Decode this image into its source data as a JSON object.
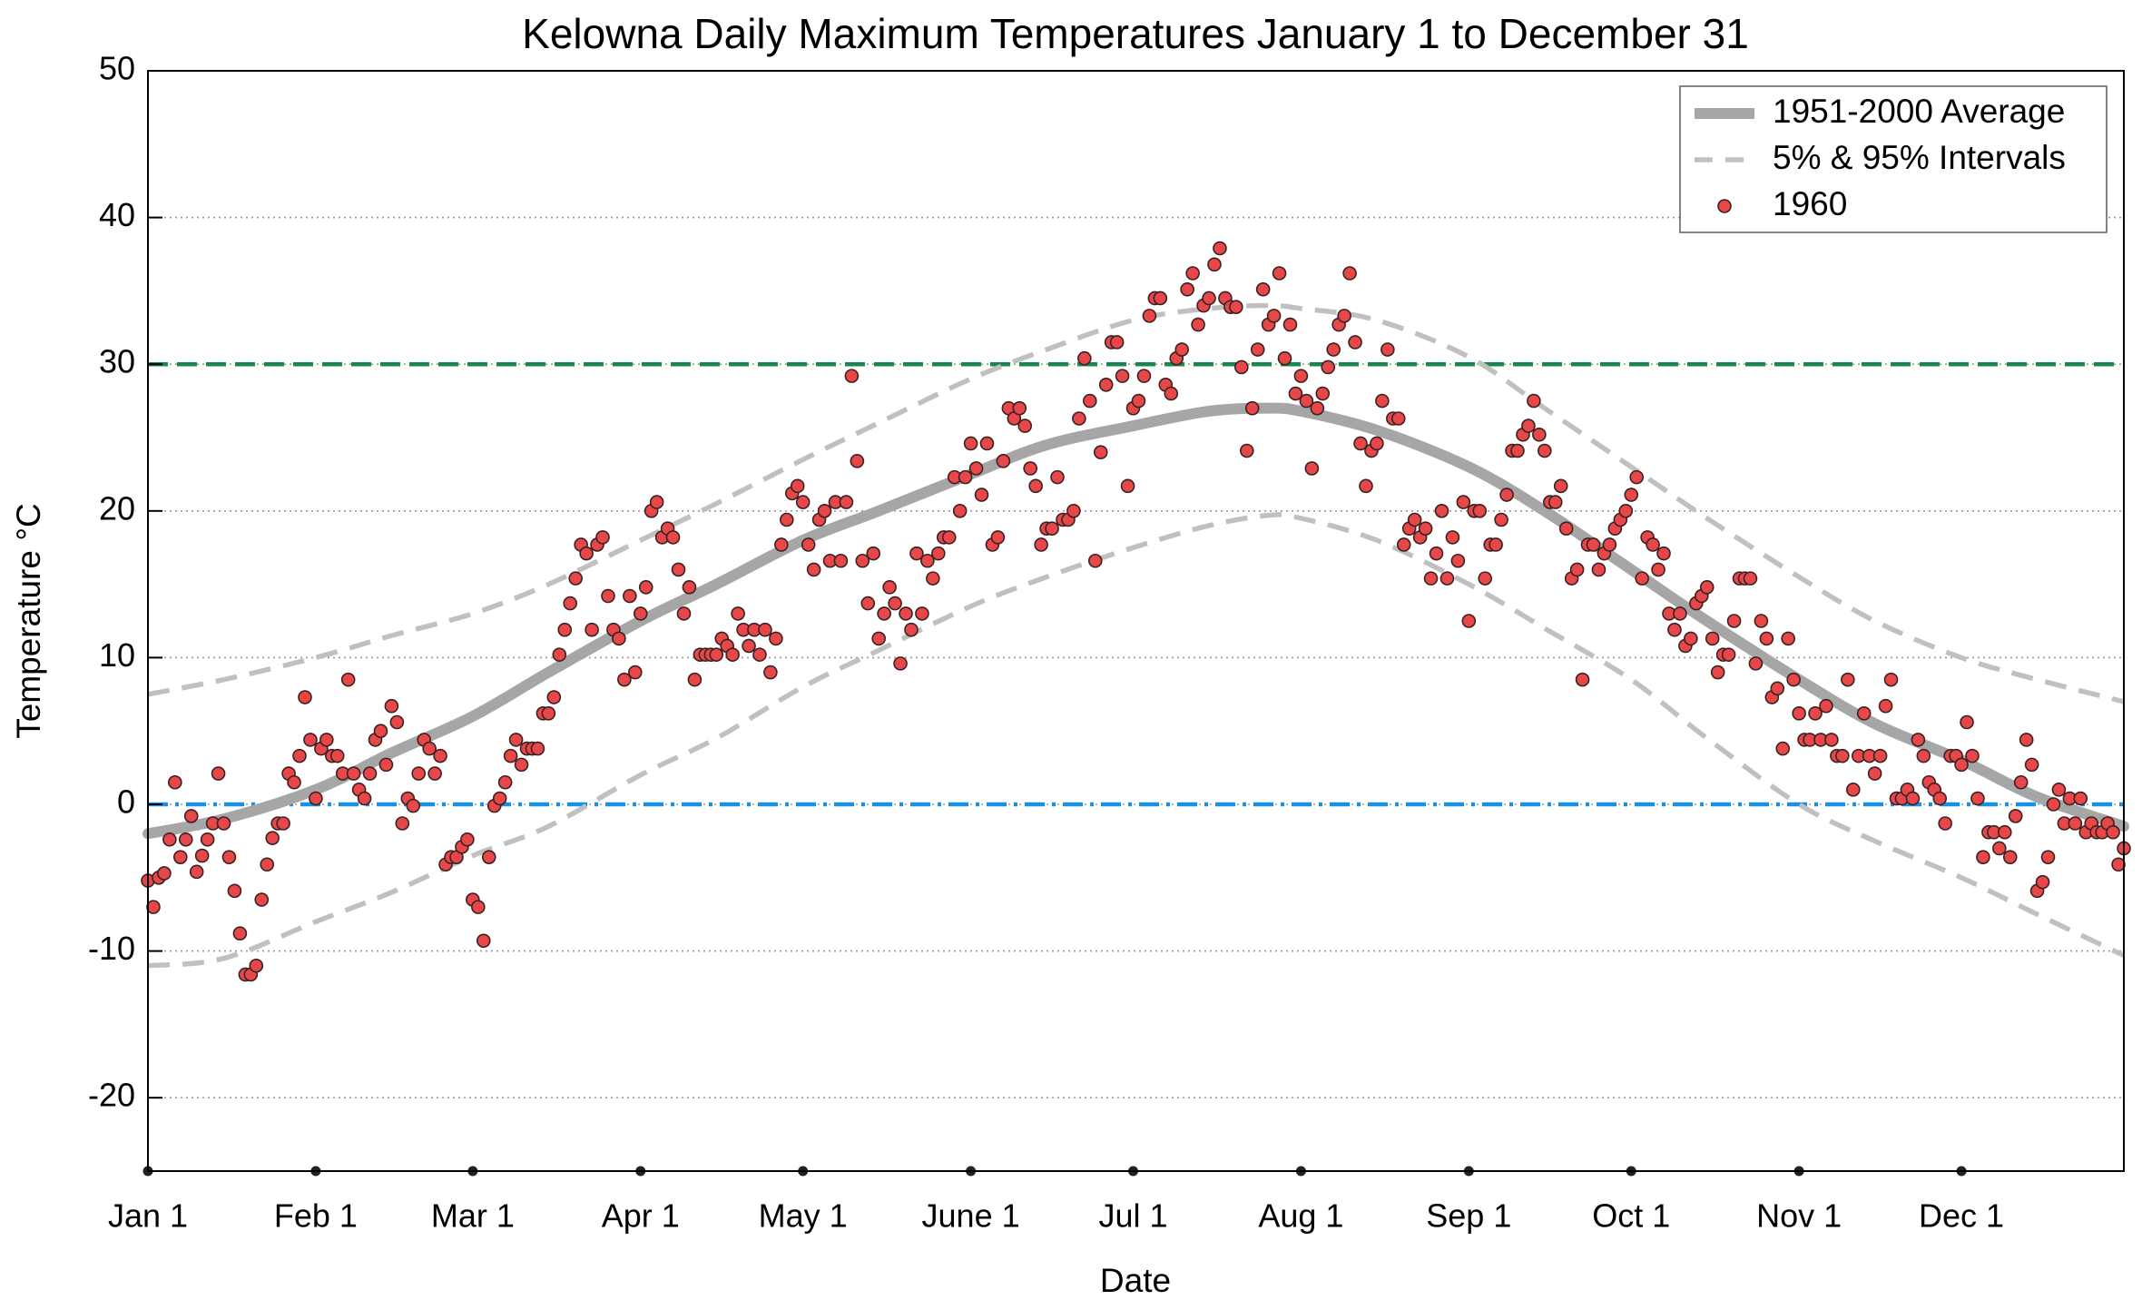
{
  "chart_data": {
    "type": "scatter",
    "title": "Kelowna Daily Maximum Temperatures January 1 to December 31",
    "x_label": "Date",
    "y_label": "Temperature °C",
    "xlim": [
      1,
      366
    ],
    "ylim": [
      -25,
      50
    ],
    "xticks": [
      {
        "value": 1,
        "label": "Jan 1"
      },
      {
        "value": 32,
        "label": "Feb 1"
      },
      {
        "value": 61,
        "label": "Mar 1"
      },
      {
        "value": 92,
        "label": "Apr 1"
      },
      {
        "value": 122,
        "label": "May 1"
      },
      {
        "value": 153,
        "label": "June 1"
      },
      {
        "value": 183,
        "label": "Jul 1"
      },
      {
        "value": 214,
        "label": "Aug 1"
      },
      {
        "value": 245,
        "label": "Sep 1"
      },
      {
        "value": 275,
        "label": "Oct 1"
      },
      {
        "value": 306,
        "label": "Nov 1"
      },
      {
        "value": 336,
        "label": "Dec 1"
      }
    ],
    "yticks": [
      -20,
      -10,
      0,
      10,
      20,
      30,
      40,
      50
    ],
    "grid": true,
    "legend": "upper right",
    "reference_lines": [
      {
        "value": 30,
        "color": "#16884f",
        "style": "dashed"
      },
      {
        "value": 0,
        "color": "#1a8fe3",
        "style": "dashdot"
      }
    ],
    "series": [
      {
        "name": "1951-2000 Average",
        "kind": "line",
        "color": "#a6a6a6",
        "x": [
          1,
          15,
          32,
          46,
          61,
          75,
          92,
          106,
          122,
          136,
          153,
          167,
          183,
          197,
          208,
          214,
          228,
          245,
          259,
          275,
          289,
          306,
          320,
          336,
          350,
          366
        ],
        "values": [
          -2,
          -1,
          1,
          3.5,
          6,
          9,
          12.5,
          15,
          18,
          20,
          22.5,
          24.5,
          25.8,
          26.8,
          27,
          26.8,
          25.5,
          23,
          20,
          16,
          12.5,
          8.5,
          5.5,
          3,
          0.5,
          -1.5
        ]
      },
      {
        "name": "5% & 95% Intervals",
        "kind": "band",
        "color": "#c0c0c0",
        "x": [
          1,
          15,
          32,
          46,
          61,
          75,
          92,
          106,
          122,
          136,
          153,
          167,
          183,
          197,
          208,
          214,
          228,
          245,
          259,
          275,
          289,
          306,
          320,
          336,
          350,
          366
        ],
        "upper": [
          7.5,
          8.5,
          10,
          11.5,
          13,
          15,
          18,
          20.5,
          23.5,
          26,
          29,
          31,
          33,
          33.8,
          34,
          33.8,
          33,
          30.5,
          27,
          23,
          19.5,
          15.5,
          12.5,
          10,
          8.5,
          7
        ],
        "lower": [
          -11,
          -10.5,
          -8,
          -6,
          -3.5,
          -1.5,
          2,
          4.5,
          8,
          10.5,
          13.5,
          15.5,
          17.5,
          19,
          19.7,
          19.5,
          18,
          15,
          12,
          8.5,
          4.5,
          0,
          -2.5,
          -5,
          -7.5,
          -10.3
        ]
      },
      {
        "name": "1960",
        "kind": "points",
        "color": "#e8474a",
        "x": [
          1,
          2,
          3,
          4,
          5,
          6,
          7,
          8,
          9,
          10,
          11,
          12,
          13,
          14,
          15,
          16,
          17,
          18,
          19,
          20,
          21,
          22,
          23,
          24,
          25,
          26,
          27,
          28,
          29,
          30,
          31,
          32,
          33,
          34,
          35,
          36,
          37,
          38,
          39,
          40,
          41,
          42,
          43,
          44,
          45,
          46,
          47,
          48,
          49,
          50,
          51,
          52,
          53,
          54,
          55,
          56,
          57,
          58,
          59,
          60,
          61,
          62,
          63,
          64,
          65,
          66,
          67,
          68,
          69,
          70,
          71,
          72,
          73,
          74,
          75,
          76,
          77,
          78,
          79,
          80,
          81,
          82,
          83,
          84,
          85,
          86,
          87,
          88,
          89,
          90,
          91,
          92,
          93,
          94,
          95,
          96,
          97,
          98,
          99,
          100,
          101,
          102,
          103,
          104,
          105,
          106,
          107,
          108,
          109,
          110,
          111,
          112,
          113,
          114,
          115,
          116,
          117,
          118,
          119,
          120,
          121,
          122,
          123,
          124,
          125,
          126,
          127,
          128,
          129,
          130,
          131,
          132,
          133,
          134,
          135,
          136,
          137,
          138,
          139,
          140,
          141,
          142,
          143,
          144,
          145,
          146,
          147,
          148,
          149,
          150,
          151,
          152,
          153,
          154,
          155,
          156,
          157,
          158,
          159,
          160,
          161,
          162,
          163,
          164,
          165,
          166,
          167,
          168,
          169,
          170,
          171,
          172,
          173,
          174,
          175,
          176,
          177,
          178,
          179,
          180,
          181,
          182,
          183,
          184,
          185,
          186,
          187,
          188,
          189,
          190,
          191,
          192,
          193,
          194,
          195,
          196,
          197,
          198,
          199,
          200,
          201,
          202,
          203,
          204,
          205,
          206,
          207,
          208,
          209,
          210,
          211,
          212,
          213,
          214,
          215,
          216,
          217,
          218,
          219,
          220,
          221,
          222,
          223,
          224,
          225,
          226,
          227,
          228,
          229,
          230,
          231,
          232,
          233,
          234,
          235,
          236,
          237,
          238,
          239,
          240,
          241,
          242,
          243,
          244,
          245,
          246,
          247,
          248,
          249,
          250,
          251,
          252,
          253,
          254,
          255,
          256,
          257,
          258,
          259,
          260,
          261,
          262,
          263,
          264,
          265,
          266,
          267,
          268,
          269,
          270,
          271,
          272,
          273,
          274,
          275,
          276,
          277,
          278,
          279,
          280,
          281,
          282,
          283,
          284,
          285,
          286,
          287,
          288,
          289,
          290,
          291,
          292,
          293,
          294,
          295,
          296,
          297,
          298,
          299,
          300,
          301,
          302,
          303,
          304,
          305,
          306,
          307,
          308,
          309,
          310,
          311,
          312,
          313,
          314,
          315,
          316,
          317,
          318,
          319,
          320,
          321,
          322,
          323,
          324,
          325,
          326,
          327,
          328,
          329,
          330,
          331,
          332,
          333,
          334,
          335,
          336,
          337,
          338,
          339,
          340,
          341,
          342,
          343,
          344,
          345,
          346,
          347,
          348,
          349,
          350,
          351,
          352,
          353,
          354,
          355,
          356,
          357,
          358,
          359,
          360,
          361,
          362,
          363,
          364,
          365,
          366
        ],
        "values": [
          -5.2,
          -7,
          -5,
          -4.7,
          -2.4,
          1.5,
          -3.6,
          -2.4,
          -0.8,
          -4.6,
          -3.5,
          -2.4,
          -1.3,
          2.1,
          -1.3,
          -3.6,
          -5.9,
          -8.8,
          -11.6,
          -11.6,
          -11,
          -6.5,
          -4.1,
          -2.3,
          -1.3,
          -1.3,
          2.1,
          1.5,
          3.3,
          7.3,
          4.4,
          0.4,
          3.8,
          4.4,
          3.3,
          3.3,
          2.1,
          8.5,
          2.1,
          1.0,
          0.4,
          2.1,
          4.4,
          5.0,
          2.7,
          6.7,
          5.6,
          -1.3,
          0.4,
          -0.1,
          2.1,
          4.4,
          3.8,
          2.1,
          3.3,
          -4.1,
          -3.6,
          -3.6,
          -2.9,
          -2.4,
          -6.5,
          -7.0,
          -9.3,
          -3.6,
          -0.1,
          0.4,
          1.5,
          3.3,
          4.4,
          2.7,
          3.8,
          3.8,
          3.8,
          6.2,
          6.2,
          7.3,
          10.2,
          11.9,
          13.7,
          15.4,
          17.7,
          17.1,
          11.9,
          17.7,
          18.2,
          14.2,
          11.9,
          11.3,
          8.5,
          14.2,
          9.0,
          13.0,
          14.8,
          20.0,
          20.6,
          18.2,
          18.8,
          18.2,
          16.0,
          13.0,
          14.8,
          8.5,
          10.2,
          10.2,
          10.2,
          10.2,
          11.3,
          10.8,
          10.2,
          13.0,
          11.9,
          10.8,
          11.9,
          10.2,
          11.9,
          9.0,
          11.3,
          17.7,
          19.4,
          21.2,
          21.7,
          20.6,
          17.7,
          16.0,
          19.4,
          20.0,
          16.6,
          20.6,
          16.6,
          20.6,
          29.2,
          23.4,
          16.6,
          13.7,
          17.1,
          11.3,
          13.0,
          14.8,
          13.7,
          9.6,
          13.0,
          11.9,
          17.1,
          13.0,
          16.6,
          15.4,
          17.1,
          18.2,
          18.2,
          22.3,
          20.0,
          22.3,
          24.6,
          22.9,
          21.1,
          24.6,
          17.7,
          18.2,
          23.4,
          27.0,
          26.3,
          27.0,
          25.8,
          22.9,
          21.7,
          17.7,
          18.8,
          18.8,
          22.3,
          19.4,
          19.4,
          20.0,
          26.3,
          30.4,
          27.5,
          16.6,
          24.0,
          28.6,
          31.5,
          31.5,
          29.2,
          21.7,
          27.0,
          27.5,
          29.2,
          33.3,
          34.5,
          34.5,
          28.6,
          28.0,
          30.4,
          31.0,
          35.1,
          36.2,
          32.7,
          34.0,
          34.5,
          36.8,
          37.9,
          34.5,
          33.9,
          33.9,
          29.8,
          24.1,
          27.0,
          31.0,
          35.1,
          32.7,
          33.3,
          36.2,
          30.4,
          32.7,
          28.0,
          29.2,
          27.5,
          22.9,
          27.0,
          28.0,
          29.8,
          31.0,
          32.7,
          33.3,
          36.2,
          31.5,
          24.6,
          21.7,
          24.1,
          24.6,
          27.5,
          31.0,
          26.3,
          26.3,
          17.7,
          18.8,
          19.4,
          18.2,
          18.8,
          15.4,
          17.1,
          20.0,
          15.4,
          18.2,
          16.6,
          20.6,
          12.5,
          20.0,
          20.0,
          15.4,
          17.7,
          17.7,
          19.4,
          21.1,
          24.1,
          24.1,
          25.2,
          25.8,
          27.5,
          25.2,
          24.1,
          20.6,
          20.6,
          21.7,
          18.8,
          15.4,
          16.0,
          8.5,
          17.7,
          17.7,
          16.0,
          17.1,
          17.7,
          18.8,
          19.4,
          20.0,
          21.1,
          22.3,
          15.4,
          18.2,
          17.7,
          16.0,
          17.1,
          13.0,
          11.9,
          13.0,
          10.8,
          11.3,
          13.7,
          14.2,
          14.8,
          11.3,
          9.0,
          10.2,
          10.2,
          12.5,
          15.4,
          15.4,
          15.4,
          9.6,
          12.5,
          11.3,
          7.3,
          7.9,
          3.8,
          11.3,
          8.5,
          6.2,
          4.4,
          4.4,
          6.2,
          4.4,
          6.7,
          4.4,
          3.3,
          3.3,
          8.5,
          1.0,
          3.3,
          6.2,
          3.3,
          2.1,
          3.3,
          6.7,
          8.5,
          0.4,
          0.4,
          1.0,
          0.4,
          4.4,
          3.3,
          1.5,
          1.0,
          0.4,
          -1.3,
          3.3,
          3.3,
          2.7,
          5.6,
          3.3,
          0.4,
          -3.6,
          -1.9,
          -1.9,
          -3.0,
          -1.9,
          -3.6,
          -0.8,
          1.5,
          4.4,
          2.7,
          -5.9,
          -5.3,
          -3.6,
          0.0,
          1.0,
          -1.3,
          0.4,
          -1.3,
          0.4,
          -1.9,
          -1.3,
          -1.9,
          -1.9,
          -1.3,
          -1.9,
          -4.1,
          -3.0
        ]
      }
    ]
  }
}
